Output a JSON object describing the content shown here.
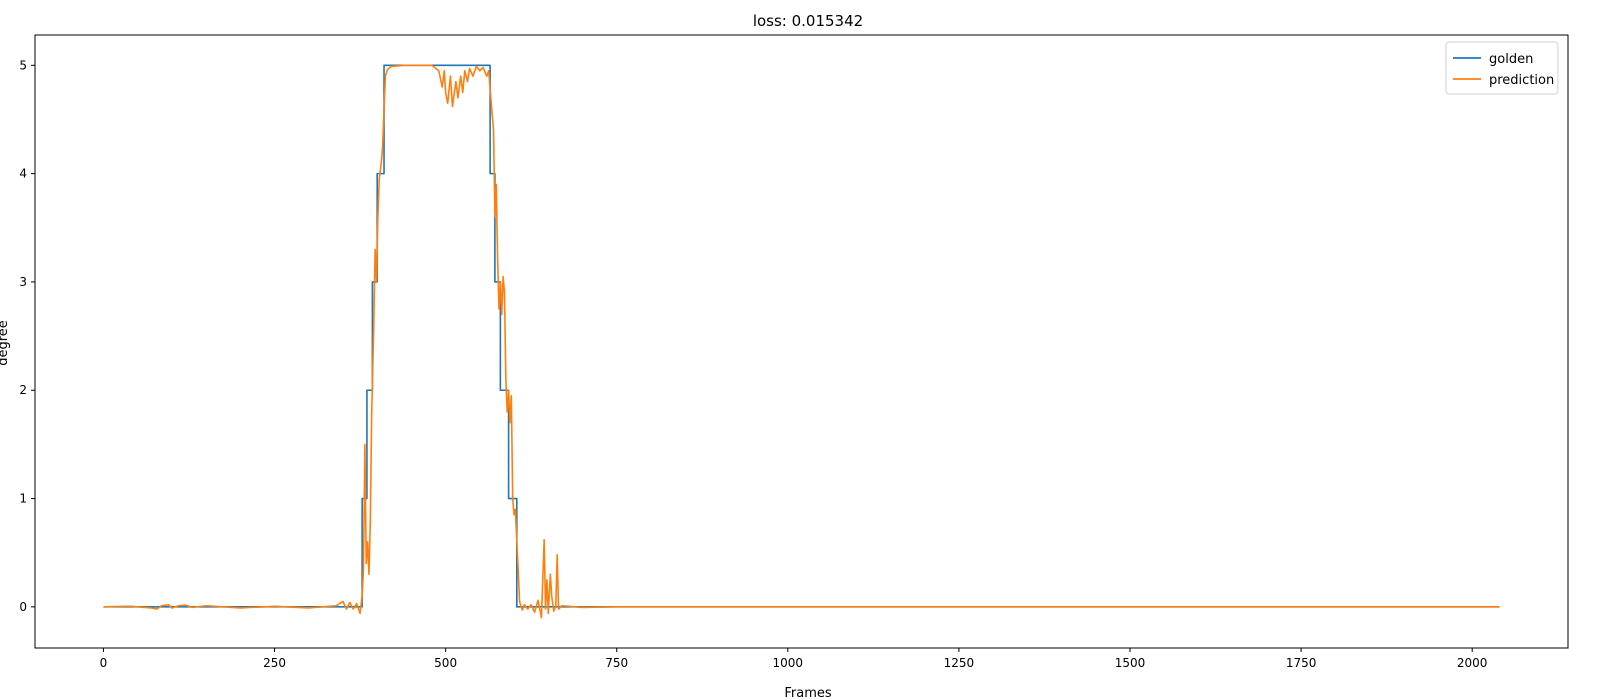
{
  "chart_data": {
    "type": "line",
    "title": "loss: 0.015342",
    "xlabel": "Frames",
    "ylabel": "degree",
    "xlim": [
      -100,
      2140
    ],
    "ylim": [
      -0.38,
      5.28
    ],
    "xticks": [
      0,
      250,
      500,
      750,
      1000,
      1250,
      1500,
      1750,
      2000
    ],
    "yticks": [
      0,
      1,
      2,
      3,
      4,
      5
    ],
    "grid": false,
    "legend_position": "top-right",
    "series": [
      {
        "name": "golden",
        "color": "#1f77b4",
        "points": [
          [
            0,
            0
          ],
          [
            378,
            0
          ],
          [
            378,
            1
          ],
          [
            385,
            1
          ],
          [
            385,
            2
          ],
          [
            393,
            2
          ],
          [
            393,
            3
          ],
          [
            400,
            3
          ],
          [
            400,
            4
          ],
          [
            410,
            4
          ],
          [
            410,
            5
          ],
          [
            565,
            5
          ],
          [
            565,
            4
          ],
          [
            572,
            4
          ],
          [
            572,
            3
          ],
          [
            580,
            3
          ],
          [
            580,
            2
          ],
          [
            592,
            2
          ],
          [
            592,
            1
          ],
          [
            604,
            1
          ],
          [
            604,
            0
          ],
          [
            2040,
            0
          ]
        ]
      },
      {
        "name": "prediction",
        "color": "#ff7f0e",
        "points": [
          [
            0,
            0
          ],
          [
            40,
            0.005
          ],
          [
            70,
            -0.01
          ],
          [
            78,
            -0.02
          ],
          [
            85,
            0.01
          ],
          [
            95,
            0.02
          ],
          [
            100,
            -0.01
          ],
          [
            110,
            0.01
          ],
          [
            120,
            0.015
          ],
          [
            130,
            -0.005
          ],
          [
            150,
            0.01
          ],
          [
            200,
            -0.01
          ],
          [
            250,
            0.005
          ],
          [
            300,
            -0.01
          ],
          [
            340,
            0.01
          ],
          [
            350,
            0.05
          ],
          [
            355,
            -0.02
          ],
          [
            360,
            0.04
          ],
          [
            365,
            -0.02
          ],
          [
            370,
            0.03
          ],
          [
            375,
            -0.06
          ],
          [
            378,
            0.1
          ],
          [
            380,
            0.35
          ],
          [
            382,
            1.5
          ],
          [
            384,
            0.4
          ],
          [
            386,
            0.6
          ],
          [
            388,
            0.3
          ],
          [
            390,
            0.8
          ],
          [
            392,
            1.8
          ],
          [
            395,
            2.6
          ],
          [
            397,
            3.3
          ],
          [
            399,
            3.0
          ],
          [
            401,
            3.6
          ],
          [
            403,
            3.95
          ],
          [
            406,
            4.1
          ],
          [
            408,
            4.25
          ],
          [
            410,
            4.6
          ],
          [
            412,
            4.9
          ],
          [
            415,
            4.96
          ],
          [
            420,
            4.99
          ],
          [
            440,
            5.0
          ],
          [
            480,
            5.0
          ],
          [
            490,
            4.95
          ],
          [
            495,
            4.8
          ],
          [
            498,
            4.95
          ],
          [
            500,
            4.75
          ],
          [
            503,
            4.65
          ],
          [
            507,
            4.9
          ],
          [
            510,
            4.62
          ],
          [
            515,
            4.85
          ],
          [
            518,
            4.7
          ],
          [
            522,
            4.9
          ],
          [
            525,
            4.75
          ],
          [
            528,
            4.95
          ],
          [
            532,
            4.85
          ],
          [
            535,
            4.97
          ],
          [
            540,
            4.9
          ],
          [
            545,
            4.99
          ],
          [
            550,
            4.95
          ],
          [
            555,
            4.98
          ],
          [
            560,
            4.9
          ],
          [
            563,
            4.95
          ],
          [
            566,
            4.7
          ],
          [
            570,
            4.4
          ],
          [
            572,
            3.6
          ],
          [
            574,
            3.9
          ],
          [
            576,
            3.2
          ],
          [
            578,
            2.75
          ],
          [
            580,
            3.0
          ],
          [
            582,
            2.7
          ],
          [
            584,
            3.05
          ],
          [
            586,
            2.9
          ],
          [
            588,
            2.1
          ],
          [
            590,
            1.8
          ],
          [
            592,
            2.0
          ],
          [
            594,
            1.7
          ],
          [
            596,
            1.95
          ],
          [
            598,
            1.0
          ],
          [
            600,
            0.85
          ],
          [
            602,
            0.9
          ],
          [
            604,
            0.6
          ],
          [
            606,
            0.35
          ],
          [
            608,
            0.05
          ],
          [
            612,
            -0.03
          ],
          [
            615,
            0.02
          ],
          [
            620,
            -0.02
          ],
          [
            625,
            0.02
          ],
          [
            630,
            -0.05
          ],
          [
            635,
            0.06
          ],
          [
            640,
            -0.1
          ],
          [
            644,
            0.62
          ],
          [
            646,
            -0.02
          ],
          [
            648,
            0.25
          ],
          [
            650,
            -0.06
          ],
          [
            653,
            0.3
          ],
          [
            655,
            0.1
          ],
          [
            658,
            -0.04
          ],
          [
            661,
            0.01
          ],
          [
            663,
            0.48
          ],
          [
            665,
            -0.02
          ],
          [
            670,
            0.01
          ],
          [
            700,
            -0.005
          ],
          [
            750,
            0.0
          ],
          [
            1000,
            0.0
          ],
          [
            1500,
            0.0
          ],
          [
            2040,
            0.0
          ]
        ]
      }
    ]
  }
}
